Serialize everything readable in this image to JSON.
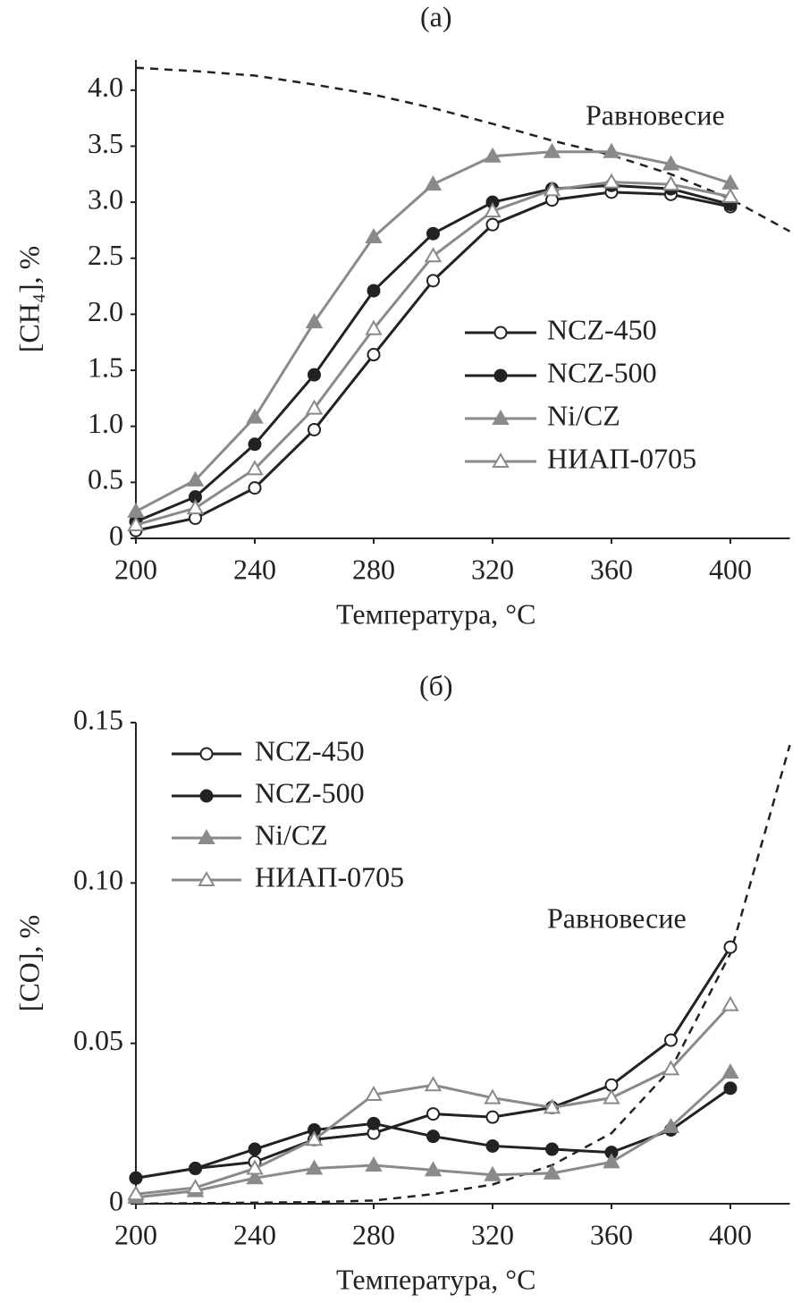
{
  "chart_data": [
    {
      "type": "line",
      "title": "(а)",
      "xlabel": "Температура, °C",
      "ylabel": "[CH₄], %",
      "x": [
        200,
        220,
        240,
        260,
        280,
        300,
        320,
        340,
        360,
        380,
        400
      ],
      "xlim": [
        200,
        420
      ],
      "xticks": [
        200,
        240,
        280,
        320,
        360,
        400
      ],
      "ylim": [
        0,
        4.27
      ],
      "yticks": [
        0,
        0.5,
        {
          "value": 1,
          "label": "1.0"
        },
        1.5,
        {
          "value": 2,
          "label": "2.0"
        },
        2.5,
        {
          "value": 3,
          "label": "3.0"
        },
        3.5,
        {
          "value": 4,
          "label": "4.0"
        }
      ],
      "legend": "center right",
      "series": [
        {
          "name": "NCZ-450",
          "color": "#222222",
          "marker": "open-circle",
          "values": [
            0.07,
            0.18,
            0.45,
            0.97,
            1.64,
            2.3,
            2.8,
            3.02,
            3.09,
            3.07,
            2.96
          ]
        },
        {
          "name": "NCZ-500",
          "color": "#222222",
          "marker": "filled-circle",
          "values": [
            0.15,
            0.37,
            0.84,
            1.46,
            2.21,
            2.72,
            3.0,
            3.12,
            3.15,
            3.12,
            2.98
          ]
        },
        {
          "name": "Ni/CZ",
          "color": "#8a8a8a",
          "marker": "filled-triangle",
          "values": [
            0.24,
            0.52,
            1.08,
            1.93,
            2.69,
            3.16,
            3.41,
            3.45,
            3.45,
            3.34,
            3.17
          ]
        },
        {
          "name": "НИАП-0705",
          "color": "#8a8a8a",
          "marker": "open-triangle",
          "values": [
            0.12,
            0.27,
            0.62,
            1.16,
            1.87,
            2.52,
            2.92,
            3.11,
            3.18,
            3.16,
            3.05
          ]
        }
      ],
      "equilibrium": {
        "label": "Равновесие",
        "color": "#222222",
        "x": [
          200,
          220,
          240,
          260,
          280,
          300,
          320,
          340,
          360,
          380,
          400,
          420
        ],
        "values": [
          4.2,
          4.17,
          4.13,
          4.05,
          3.96,
          3.84,
          3.7,
          3.55,
          3.42,
          3.25,
          3.03,
          2.74
        ]
      }
    },
    {
      "type": "line",
      "title": "(б)",
      "xlabel": "Температура, °C",
      "ylabel": "[CO], %",
      "x": [
        200,
        220,
        240,
        260,
        280,
        300,
        320,
        340,
        360,
        380,
        400
      ],
      "xlim": [
        200,
        420
      ],
      "xticks": [
        200,
        240,
        280,
        320,
        360,
        400
      ],
      "ylim": [
        0,
        0.15
      ],
      "yticks": [
        0,
        0.05,
        {
          "value": 0.1,
          "label": "0.10"
        },
        0.15
      ],
      "legend": "upper left",
      "series": [
        {
          "name": "NCZ-450",
          "color": "#222222",
          "marker": "open-circle",
          "values": [
            0.008,
            0.011,
            0.013,
            0.02,
            0.022,
            0.028,
            0.027,
            0.03,
            0.037,
            0.051,
            0.08
          ]
        },
        {
          "name": "NCZ-500",
          "color": "#222222",
          "marker": "filled-circle",
          "values": [
            0.008,
            0.011,
            0.017,
            0.023,
            0.025,
            0.021,
            0.018,
            0.017,
            0.016,
            0.023,
            0.036
          ]
        },
        {
          "name": "Ni/CZ",
          "color": "#8a8a8a",
          "marker": "filled-triangle",
          "values": [
            0.002,
            0.004,
            0.008,
            0.011,
            0.012,
            0.0105,
            0.009,
            0.0095,
            0.013,
            0.024,
            0.041
          ]
        },
        {
          "name": "НИАП-0705",
          "color": "#8a8a8a",
          "marker": "open-triangle",
          "values": [
            0.003,
            0.005,
            0.011,
            0.02,
            0.034,
            0.037,
            0.033,
            0.03,
            0.033,
            0.042,
            0.062
          ]
        }
      ],
      "equilibrium": {
        "label": "Равновесие",
        "color": "#222222",
        "x": [
          200,
          260,
          280,
          300,
          320,
          340,
          360,
          380,
          400,
          420
        ],
        "values": [
          0,
          0.0005,
          0.001,
          0.003,
          0.006,
          0.012,
          0.022,
          0.042,
          0.078,
          0.143
        ]
      }
    }
  ]
}
